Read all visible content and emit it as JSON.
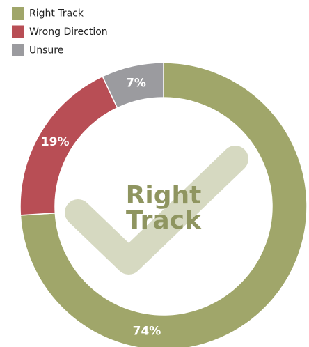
{
  "chart_data": {
    "type": "donut",
    "categories": [
      "Right Track",
      "Wrong Direction",
      "Unsure"
    ],
    "values": [
      74,
      19,
      7
    ],
    "value_labels": [
      "74%",
      "19%",
      "7%"
    ],
    "colors": [
      "#a0a66a",
      "#b84e55",
      "#9b9b9f"
    ],
    "center_label": "Right Track",
    "legend": "top-left"
  }
}
